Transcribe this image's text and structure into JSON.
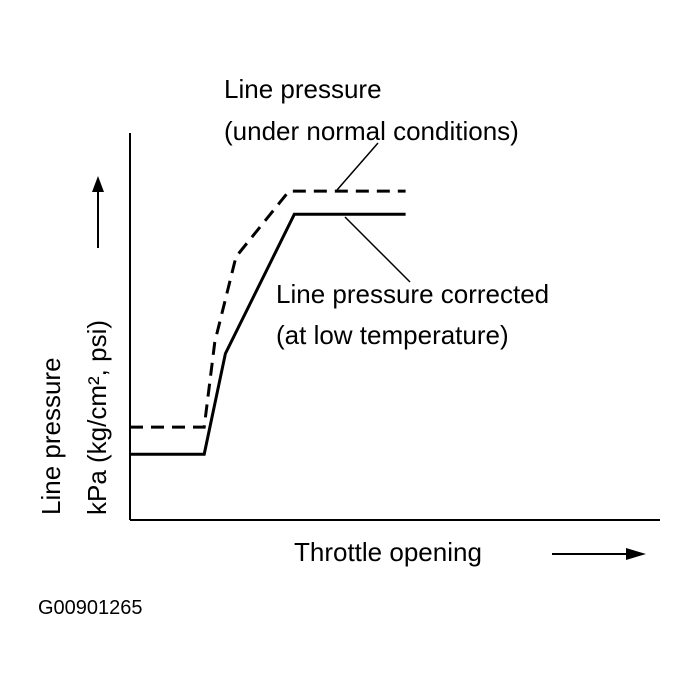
{
  "chart_data": {
    "type": "line",
    "xlabel": "Throttle opening",
    "ylabel_line1": "Line pressure",
    "ylabel_line2": "kPa (kg/cm², psi)",
    "xlim": [
      0,
      100
    ],
    "ylim": [
      0,
      100
    ],
    "series": [
      {
        "name": "Line pressure (under normal conditions)",
        "label_lines": [
          "Line pressure",
          "(under normal conditions)"
        ],
        "style": "dashed",
        "x": [
          0,
          14,
          16,
          20,
          30,
          52
        ],
        "y": [
          24,
          24,
          46,
          68,
          85,
          85
        ]
      },
      {
        "name": "Line pressure corrected (at low temperature)",
        "label_lines": [
          "Line pressure corrected",
          "(at low temperature)"
        ],
        "style": "solid",
        "x": [
          0,
          14,
          18,
          31,
          52
        ],
        "y": [
          17,
          17,
          43,
          79,
          79
        ]
      }
    ],
    "figure_id": "G00901265",
    "grid": false,
    "colors": {
      "line": "#000000",
      "background": "#ffffff"
    }
  }
}
